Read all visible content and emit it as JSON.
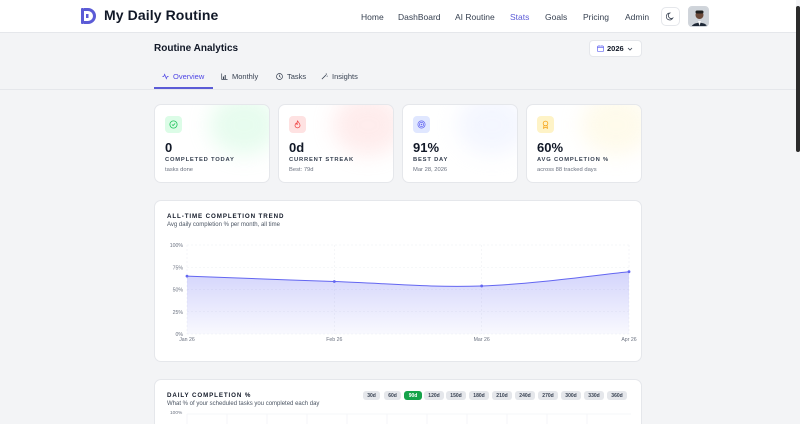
{
  "app": {
    "title": "My Daily Routine"
  },
  "nav": {
    "links": [
      {
        "label": "Home"
      },
      {
        "label": "DashBoard"
      },
      {
        "label": "AI Routine"
      },
      {
        "label": "Stats"
      },
      {
        "label": "Goals"
      },
      {
        "label": "Pricing"
      },
      {
        "label": "Admin"
      }
    ],
    "active": "Stats",
    "theme_icon": "moon-icon"
  },
  "page": {
    "title": "Routine Analytics",
    "year": "2026",
    "tabs": [
      {
        "label": "Overview",
        "icon": "activity-icon"
      },
      {
        "label": "Monthly",
        "icon": "bar-chart-icon"
      },
      {
        "label": "Tasks",
        "icon": "clock-icon"
      },
      {
        "label": "Insights",
        "icon": "wand-icon"
      }
    ],
    "active_tab": "Overview"
  },
  "stats": [
    {
      "value": "0",
      "label": "COMPLETED TODAY",
      "sub": "tasks done",
      "icon": "check-circle-icon",
      "color": "#22c55e"
    },
    {
      "value": "0d",
      "label": "CURRENT STREAK",
      "sub": "Best: 79d",
      "icon": "flame-icon",
      "color": "#ef4444"
    },
    {
      "value": "91%",
      "label": "BEST DAY",
      "sub": "Mar 28, 2026",
      "icon": "target-icon",
      "color": "#6366f1"
    },
    {
      "value": "60%",
      "label": "AVG COMPLETION %",
      "sub": "across 88 tracked days",
      "icon": "award-icon",
      "color": "#f59e0b"
    }
  ],
  "trend": {
    "title": "ALL-TIME COMPLETION TREND",
    "subtitle": "Avg daily completion % per month, all time"
  },
  "daily": {
    "title": "DAILY COMPLETION %",
    "subtitle": "What % of your scheduled tasks you completed each day",
    "y_top": "100%",
    "ranges": [
      "30d",
      "60d",
      "90d",
      "120d",
      "150d",
      "180d",
      "210d",
      "240d",
      "270d",
      "300d",
      "330d",
      "360d"
    ],
    "active_range": "90d"
  },
  "chart_data": {
    "type": "area",
    "title": "ALL-TIME COMPLETION TREND",
    "subtitle": "Avg daily completion % per month, all time",
    "categories": [
      "Jan 26",
      "Feb 26",
      "Mar 26",
      "Apr 26"
    ],
    "values": [
      65,
      59,
      54,
      70
    ],
    "y_ticks": [
      "0%",
      "25%",
      "50%",
      "75%",
      "100%"
    ],
    "ylim": [
      0,
      100
    ],
    "grid": true,
    "color": "#6366f1"
  }
}
